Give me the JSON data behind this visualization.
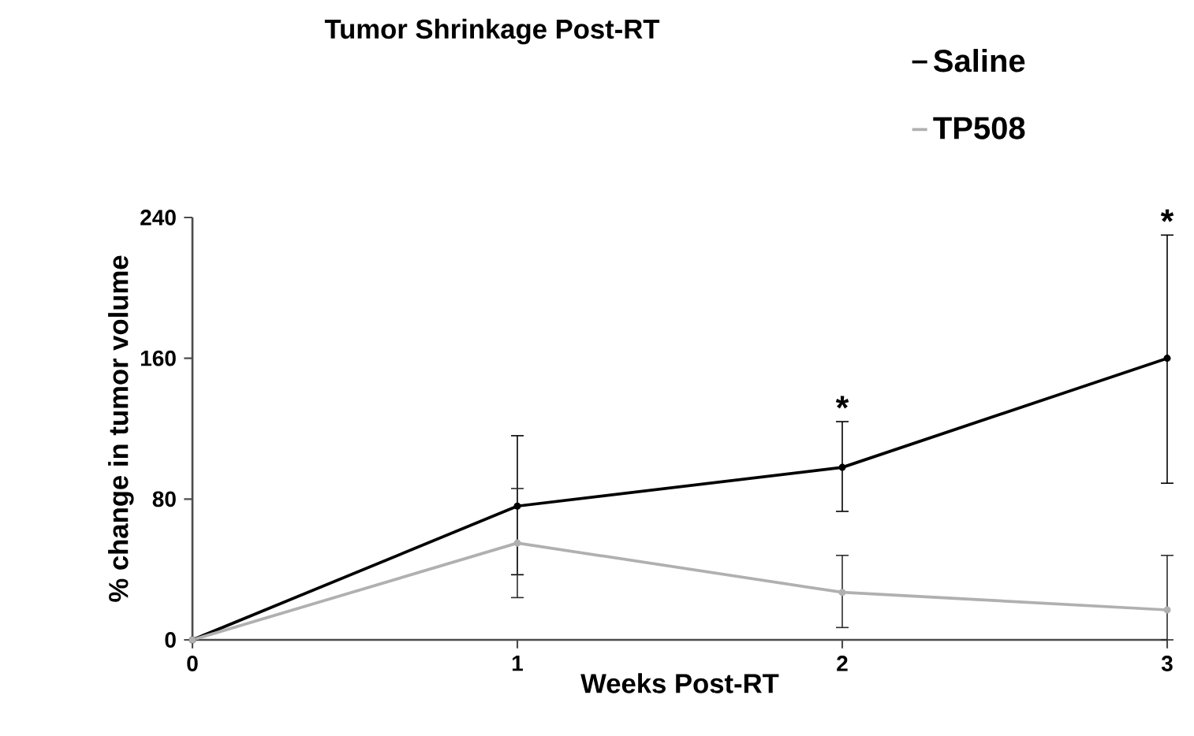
{
  "chart_data": {
    "type": "line",
    "title": "Tumor Shrinkage Post-RT",
    "xlabel": "Weeks Post-RT",
    "ylabel": "% change in tumor volume",
    "x": [
      0,
      1,
      2,
      3
    ],
    "series": [
      {
        "name": "Saline",
        "color": "#000000",
        "values": [
          0,
          76,
          98,
          160
        ],
        "errors": [
          null,
          [
            37,
            116
          ],
          [
            73,
            124
          ],
          [
            89,
            230
          ]
        ]
      },
      {
        "name": "TP508",
        "color": "#b0b0b0",
        "values": [
          0,
          55,
          27,
          17
        ],
        "errors": [
          null,
          [
            24,
            86
          ],
          [
            7,
            48
          ],
          [
            0,
            48
          ]
        ]
      }
    ],
    "xlim": [
      0,
      3
    ],
    "xticks": [
      0,
      1,
      2,
      3
    ],
    "ylim": [
      0,
      240
    ],
    "yticks": [
      0,
      80,
      160,
      240
    ],
    "legend": "top right",
    "marker": "circle",
    "line_style": "solid",
    "grid": false,
    "annotations": [
      {
        "text": "*",
        "x": 2,
        "y": 124
      },
      {
        "text": "*",
        "x": 3,
        "y": 230
      }
    ]
  }
}
